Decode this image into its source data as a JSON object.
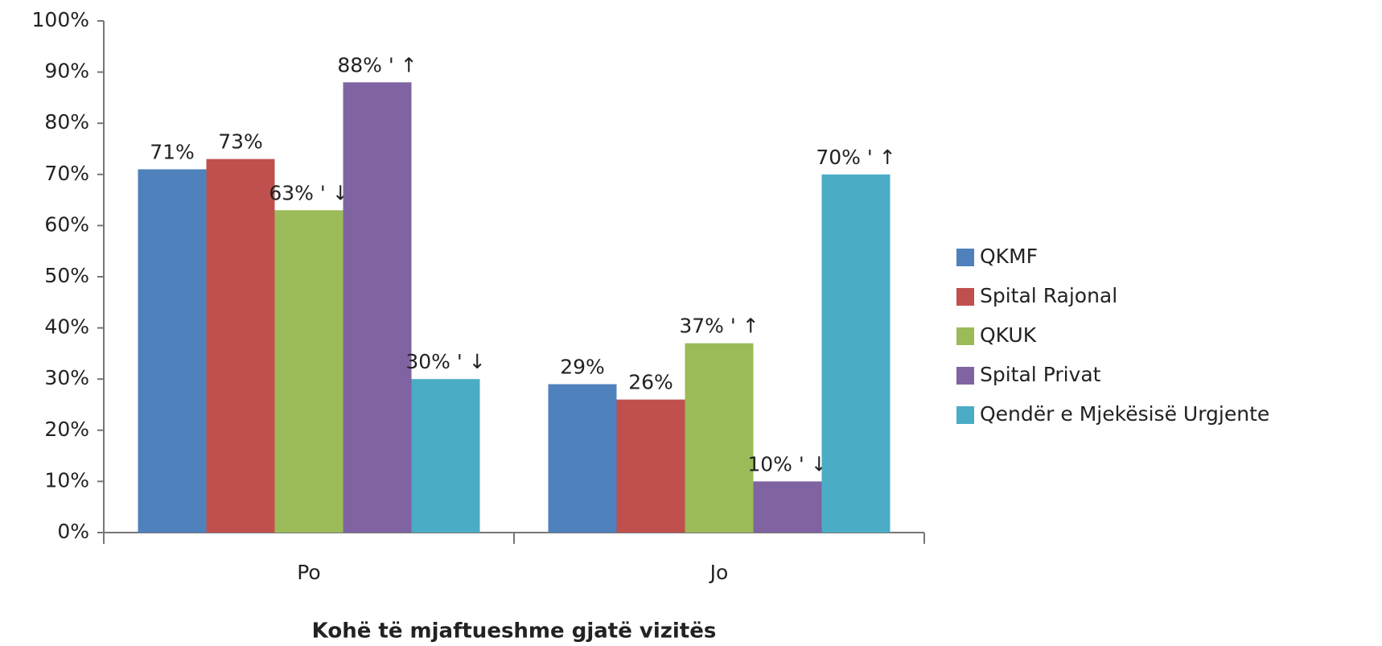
{
  "chart_data": {
    "type": "bar",
    "x_label": "Kohë të mjaftueshme gjatë vizitës",
    "categories": [
      "Po",
      "Jo"
    ],
    "series": [
      {
        "name": "QKMF",
        "color": "#4f81bd",
        "values": [
          71,
          29
        ],
        "value_labels": [
          "71%",
          "29%"
        ]
      },
      {
        "name": "Spital Rajonal",
        "color": "#c0504d",
        "values": [
          73,
          26
        ],
        "value_labels": [
          "73%",
          "26%"
        ]
      },
      {
        "name": "QKUK",
        "color": "#9bbb59",
        "values": [
          63,
          37
        ],
        "value_labels": [
          "63% ' ↓",
          "37% ' ↑"
        ]
      },
      {
        "name": "Spital Privat",
        "color": "#8064a2",
        "values": [
          88,
          10
        ],
        "value_labels": [
          "88% ' ↑",
          "10% ' ↓"
        ]
      },
      {
        "name": "Qendër e Mjekësisë Urgjente",
        "color": "#4bacc6",
        "values": [
          30,
          70
        ],
        "value_labels": [
          "30% ' ↓",
          "70% ' ↑"
        ]
      }
    ],
    "ylim": [
      0,
      100
    ],
    "yticks": [
      {
        "value": 0,
        "label": "0%"
      },
      {
        "value": 10,
        "label": "10%"
      },
      {
        "value": 20,
        "label": "20%"
      },
      {
        "value": 30,
        "label": "30%"
      },
      {
        "value": 40,
        "label": "40%"
      },
      {
        "value": 50,
        "label": "50%"
      },
      {
        "value": 60,
        "label": "60%"
      },
      {
        "value": 70,
        "label": "70%"
      },
      {
        "value": 80,
        "label": "80%"
      },
      {
        "value": 90,
        "label": "90%"
      },
      {
        "value": 100,
        "label": "100%"
      }
    ],
    "grid": false,
    "legend": "right"
  }
}
